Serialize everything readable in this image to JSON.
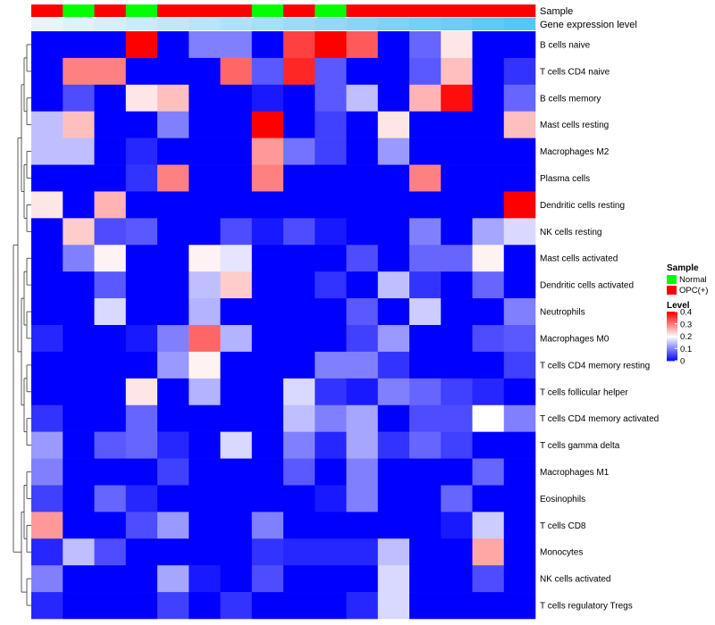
{
  "chart_data": {
    "type": "heatmap",
    "annotation_labels": [
      "Sample",
      "Gene expression level"
    ],
    "sample_groups": [
      "OPC(+)",
      "Normal",
      "OPC(+)",
      "Normal",
      "OPC(+)",
      "OPC(+)",
      "OPC(+)",
      "Normal",
      "OPC(+)",
      "Normal",
      "OPC(+)",
      "OPC(+)",
      "OPC(+)",
      "OPC(+)",
      "OPC(+)",
      "OPC(+)"
    ],
    "gene_expression_level": [
      0.02,
      0.06,
      0.1,
      0.14,
      0.18,
      0.22,
      0.26,
      0.3,
      0.34,
      0.38,
      0.42,
      0.46,
      0.5,
      0.54,
      0.58,
      0.62
    ],
    "rows": [
      "B cells naive",
      "T cells CD4 naive",
      "B cells memory",
      "Mast cells resting",
      "Macrophages M2",
      "Plasma cells",
      "Dendritic cells resting",
      "NK cells resting",
      "Mast cells activated",
      "Dendritic cells activated",
      "Neutrophils",
      "Macrophages M0",
      "T cells CD4 memory resting",
      "T cells follicular helper",
      "T cells CD4 memory activated",
      "T cells gamma delta",
      "Macrophages M1",
      "Eosinophils",
      "T cells CD8",
      "Monocytes",
      "NK cells activated",
      "T cells regulatory  Tregs"
    ],
    "values": [
      [
        0,
        0,
        0,
        0.4,
        0,
        0.1,
        0.1,
        0,
        0.35,
        0.4,
        0.33,
        0,
        0.08,
        0.22,
        0,
        0
      ],
      [
        0,
        0.3,
        0.3,
        0,
        0,
        0,
        0.32,
        0.07,
        0.37,
        0.07,
        0,
        0,
        0.07,
        0.25,
        0,
        0.04
      ],
      [
        0,
        0.06,
        0,
        0.22,
        0.25,
        0,
        0,
        0.02,
        0,
        0.07,
        0.15,
        0,
        0.26,
        0.39,
        0,
        0.08
      ],
      [
        0.15,
        0.25,
        0,
        0,
        0.1,
        0,
        0,
        0.4,
        0,
        0.05,
        0,
        0.22,
        0,
        0,
        0,
        0.25
      ],
      [
        0.15,
        0.15,
        0,
        0.03,
        0,
        0,
        0,
        0.28,
        0.09,
        0.05,
        0,
        0.12,
        0,
        0,
        0,
        0
      ],
      [
        0,
        0,
        0,
        0.04,
        0.3,
        0,
        0,
        0.3,
        0,
        0,
        0,
        0,
        0.3,
        0,
        0,
        0
      ],
      [
        0.22,
        0,
        0.26,
        0,
        0,
        0,
        0,
        0,
        0,
        0,
        0,
        0,
        0,
        0,
        0,
        0.4
      ],
      [
        0,
        0.24,
        0.06,
        0.07,
        0,
        0,
        0.06,
        0.02,
        0.06,
        0.02,
        0,
        0,
        0.1,
        0,
        0.13,
        0.17
      ],
      [
        0,
        0.1,
        0.21,
        0,
        0,
        0.21,
        0.18,
        0,
        0,
        0,
        0.06,
        0,
        0.08,
        0.08,
        0.21,
        0
      ],
      [
        0,
        0,
        0.07,
        0,
        0,
        0.15,
        0.24,
        0,
        0,
        0.04,
        0,
        0.15,
        0.04,
        0,
        0.08,
        0
      ],
      [
        0,
        0,
        0.17,
        0,
        0,
        0.14,
        0,
        0,
        0,
        0,
        0.07,
        0,
        0.16,
        0,
        0,
        0.1
      ],
      [
        0.03,
        0,
        0,
        0.02,
        0.1,
        0.32,
        0.14,
        0,
        0,
        0,
        0.05,
        0.12,
        0,
        0,
        0.06,
        0.07
      ],
      [
        0,
        0,
        0,
        0,
        0.12,
        0.21,
        0,
        0,
        0,
        0.1,
        0.1,
        0.04,
        0,
        0,
        0,
        0.05
      ],
      [
        0,
        0,
        0,
        0.22,
        0,
        0.14,
        0,
        0,
        0.17,
        0.04,
        0.02,
        0.1,
        0.08,
        0.05,
        0.03,
        0
      ],
      [
        0.04,
        0,
        0,
        0.08,
        0,
        0,
        0,
        0,
        0.15,
        0.1,
        0.13,
        0,
        0.06,
        0.06,
        0.2,
        0.1
      ],
      [
        0.12,
        0,
        0.07,
        0.08,
        0.03,
        0,
        0.17,
        0,
        0.1,
        0.03,
        0.13,
        0.04,
        0.08,
        0.05,
        0,
        0
      ],
      [
        0.1,
        0,
        0,
        0,
        0.05,
        0,
        0,
        0,
        0.07,
        0,
        0.1,
        0,
        0,
        0,
        0.08,
        0
      ],
      [
        0.05,
        0,
        0.08,
        0.03,
        0,
        0,
        0,
        0,
        0,
        0.02,
        0.1,
        0,
        0,
        0.08,
        0,
        0
      ],
      [
        0.28,
        0,
        0,
        0.06,
        0.12,
        0,
        0,
        0.1,
        0,
        0,
        0,
        0,
        0,
        0.02,
        0.16,
        0
      ],
      [
        0.03,
        0.15,
        0.06,
        0,
        0,
        0,
        0,
        0.04,
        0.03,
        0.03,
        0.03,
        0.15,
        0,
        0,
        0.27,
        0
      ],
      [
        0.1,
        0,
        0,
        0,
        0.13,
        0.02,
        0,
        0.06,
        0,
        0,
        0,
        0.17,
        0,
        0,
        0.06,
        0
      ],
      [
        0.03,
        0,
        0,
        0,
        0.05,
        0,
        0.04,
        0,
        0,
        0,
        0.03,
        0.17,
        0,
        0,
        0,
        0
      ]
    ],
    "legend": {
      "sample_title": "Sample",
      "sample_entries": [
        {
          "label": "Normal",
          "color": "#00ff00"
        },
        {
          "label": "OPC(+)",
          "color": "#ff0000"
        }
      ],
      "level_title": "Level",
      "level_ticks": [
        {
          "value": 0.4,
          "label": "0.4"
        },
        {
          "value": 0.3,
          "label": "0.3"
        },
        {
          "value": 0.2,
          "label": "0.2"
        },
        {
          "value": 0.1,
          "label": "0.1"
        },
        {
          "value": 0,
          "label": "0"
        }
      ],
      "placement": "right"
    },
    "color_scale": {
      "low": "#0000ff",
      "mid": "#ffffff",
      "high": "#ff0000",
      "range": [
        0,
        0.4
      ]
    },
    "gene_expression_colors": {
      "low": "#e8f4fc",
      "high": "#5cc4f4"
    },
    "dendrogram": "left"
  }
}
